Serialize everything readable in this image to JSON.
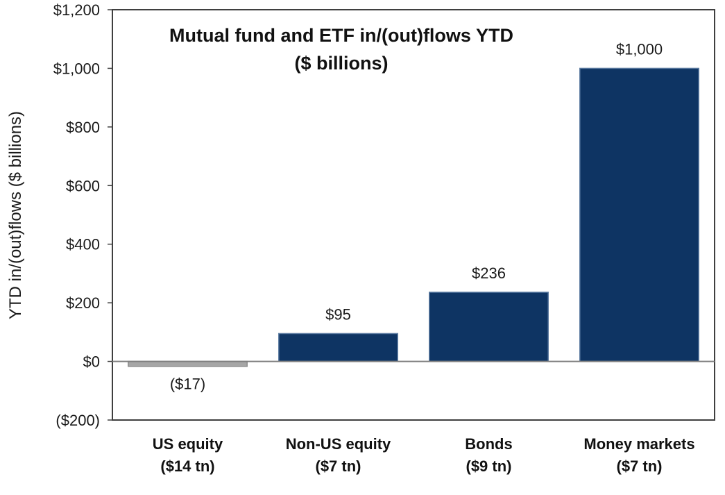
{
  "chart_data": {
    "type": "bar",
    "title": [
      "Mutual fund and ETF in/(out)flows YTD",
      "($ billions)"
    ],
    "ylabel": "YTD in/(out)flows ($ billions)",
    "xlabel": "",
    "ylim": [
      -200,
      1200
    ],
    "yticks": [
      -200,
      0,
      200,
      400,
      600,
      800,
      1000,
      1200
    ],
    "ytick_labels": [
      "($200)",
      "$0",
      "$200",
      "$400",
      "$600",
      "$800",
      "$1,000",
      "$1,200"
    ],
    "categories": [
      [
        "US equity",
        "($14 tn)"
      ],
      [
        "Non-US equity",
        "($7 tn)"
      ],
      [
        "Bonds",
        "($9 tn)"
      ],
      [
        "Money markets",
        "($7 tn)"
      ]
    ],
    "values": [
      -17,
      95,
      236,
      1000
    ],
    "data_labels": [
      "($17)",
      "$95",
      "$236",
      "$1,000"
    ],
    "grid": false,
    "legend": "none",
    "colors": {
      "positive": "#0e3463",
      "negative": "#a6a6a6",
      "axis": "#7f7f7f",
      "frame": "#3f3f3f"
    }
  }
}
